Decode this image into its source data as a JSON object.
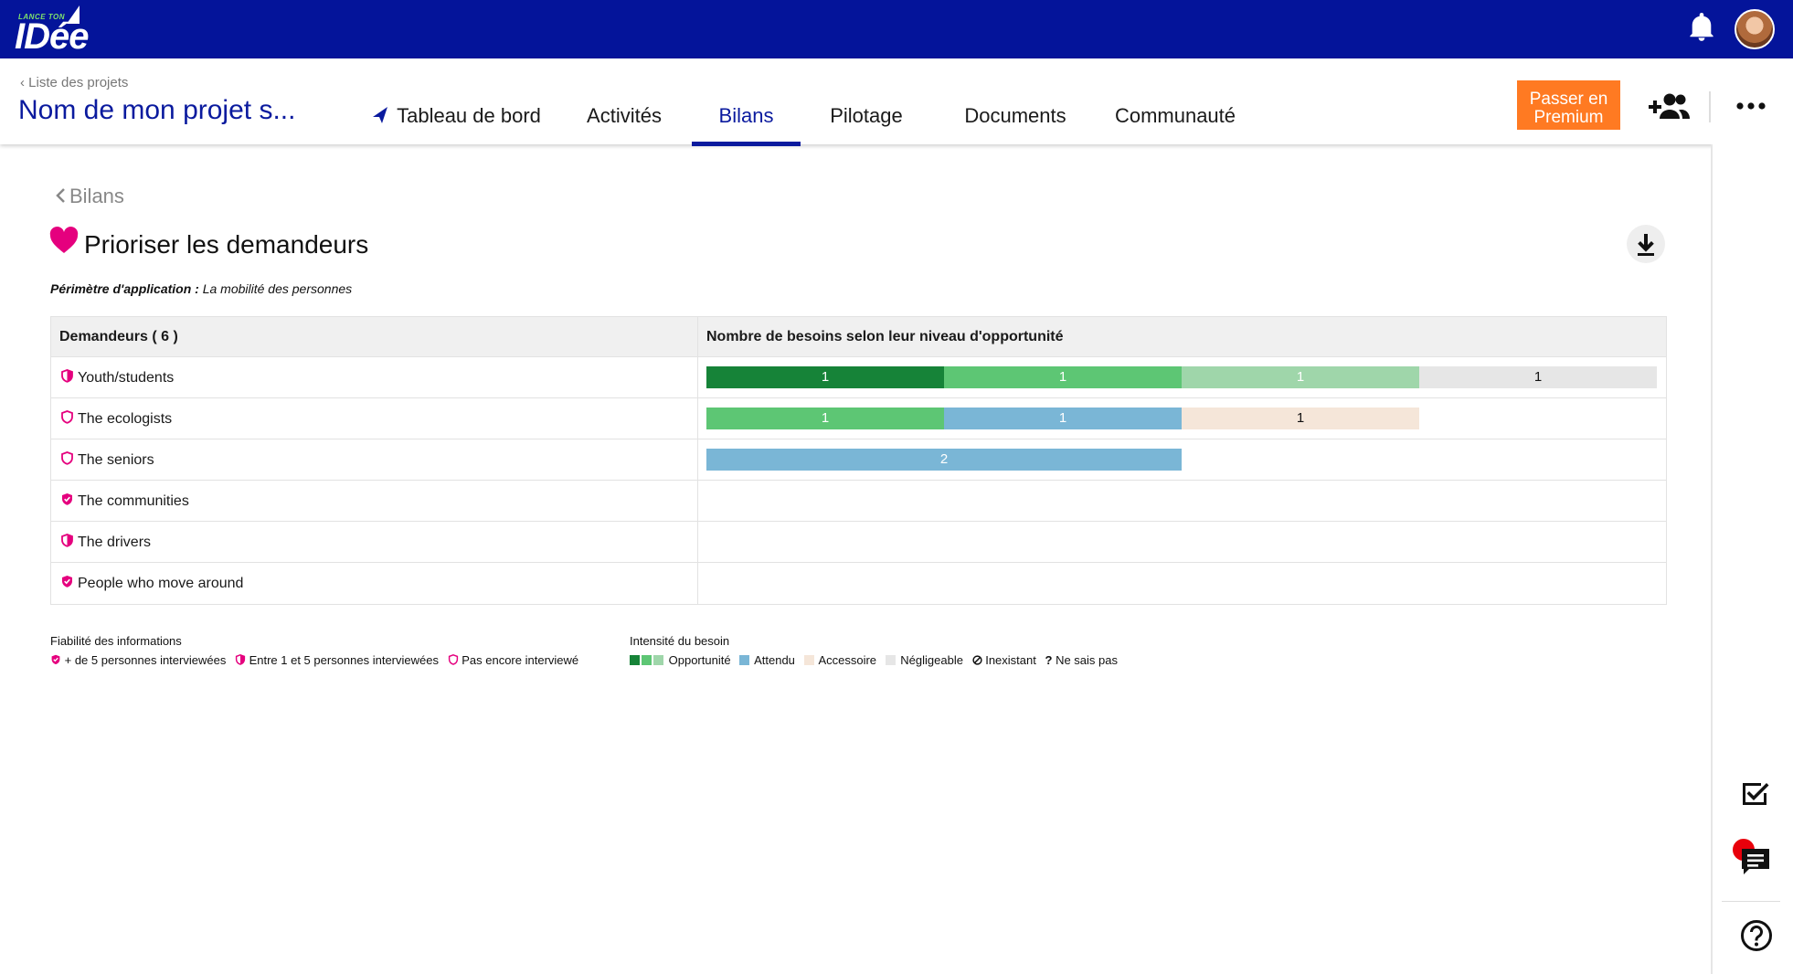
{
  "colors": {
    "topbar": "#04149a",
    "accent": "#0a1a9e",
    "premium": "#ff7a22",
    "pink": "#e5007e",
    "opportunite_dark": "#168338",
    "opportunite_mid": "#5dc674",
    "opportunite_light": "#9fd6aa",
    "attendu": "#7ab6d6",
    "accessoire": "#f5e6d9",
    "negligeable": "#e6e6e6"
  },
  "topbar": {
    "logo_small": "LANCE TON",
    "logo_big": "IDée",
    "icons": [
      "bell-icon",
      "avatar"
    ]
  },
  "project": {
    "back_label": "Liste des projets",
    "title": "Nom de mon projet s...",
    "tabs": [
      {
        "label": "Tableau de bord",
        "active": false
      },
      {
        "label": "Activités",
        "active": false
      },
      {
        "label": "Bilans",
        "active": true
      },
      {
        "label": "Pilotage",
        "active": false
      },
      {
        "label": "Documents",
        "active": false
      },
      {
        "label": "Communauté",
        "active": false
      }
    ],
    "premium_line1": "Passer en",
    "premium_line2": "Premium"
  },
  "page": {
    "breadcrumb": "Bilans",
    "title": "Prioriser les demandeurs",
    "scope_label": "Périmètre d'application :",
    "scope_value": "La mobilité des personnes"
  },
  "table": {
    "col1_header": "Demandeurs ( 6 )",
    "col2_header": "Nombre de besoins selon leur niveau d'opportunité",
    "rows": [
      {
        "name": "Youth/students",
        "reliability": "entre-1-et-5",
        "bars": [
          {
            "level": "opportunite_dark",
            "value": 1
          },
          {
            "level": "opportunite_mid",
            "value": 1
          },
          {
            "level": "opportunite_light",
            "value": 1
          },
          {
            "level": "negligeable",
            "value": 1
          }
        ]
      },
      {
        "name": "The ecologists",
        "reliability": "pas-encore",
        "bars": [
          {
            "level": "opportunite_mid",
            "value": 1
          },
          {
            "level": "attendu",
            "value": 1
          },
          {
            "level": "accessoire",
            "value": 1
          }
        ]
      },
      {
        "name": "The seniors",
        "reliability": "pas-encore",
        "bars": [
          {
            "level": "attendu",
            "value": 2
          }
        ]
      },
      {
        "name": "The communities",
        "reliability": "plus-de-5",
        "bars": []
      },
      {
        "name": "The drivers",
        "reliability": "entre-1-et-5",
        "bars": []
      },
      {
        "name": "People who move around",
        "reliability": "plus-de-5",
        "bars": []
      }
    ]
  },
  "legend": {
    "reliability_title": "Fiabilité des informations",
    "reliability_items": [
      "+ de 5 personnes interviewées",
      "Entre 1 et 5 personnes interviewées",
      "Pas encore interviewé"
    ],
    "intensity_title": "Intensité du besoin",
    "intensity_items": [
      "Opportunité",
      "Attendu",
      "Accessoire",
      "Négligeable",
      "Inexistant",
      "Ne sais pas"
    ],
    "unknown_symbol": "?"
  }
}
